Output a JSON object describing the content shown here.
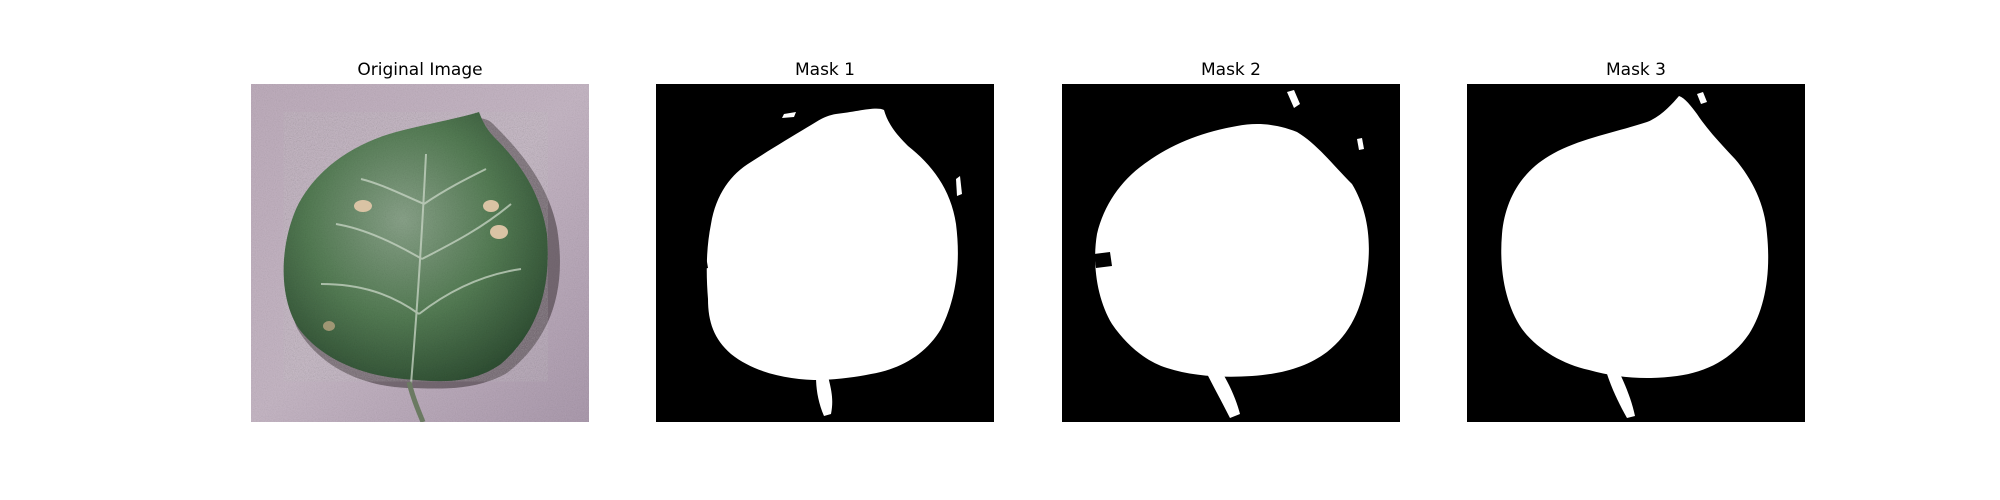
{
  "panels": [
    {
      "title": "Original Image"
    },
    {
      "title": "Mask 1"
    },
    {
      "title": "Mask 2"
    },
    {
      "title": "Mask 3"
    }
  ],
  "colors": {
    "background": "#ffffff",
    "mask_foreground": "#ffffff",
    "mask_background": "#000000",
    "leaf_green": "#4f7a4f",
    "leaf_bg_lavender": "#b7a6b7"
  }
}
